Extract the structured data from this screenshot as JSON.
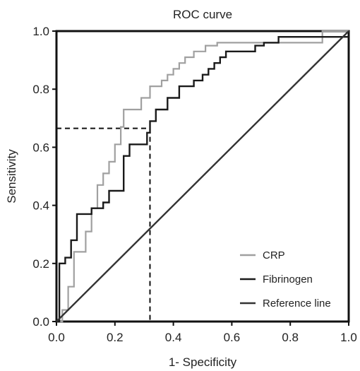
{
  "chart_data": {
    "type": "line",
    "title": "ROC curve",
    "xlabel": "1- Specificity",
    "ylabel": "Sensitivity",
    "xlim": [
      0,
      1
    ],
    "ylim": [
      0,
      1
    ],
    "x_ticks": [
      "0.0",
      "0.2",
      "0.4",
      "0.6",
      "0.8",
      "1.0"
    ],
    "y_ticks": [
      "0.0",
      "0.2",
      "0.4",
      "0.6",
      "0.8",
      "1.0"
    ],
    "grid": false,
    "legend_position": "bottom-right",
    "series": [
      {
        "name": "CRP",
        "color": "#a0a0a0",
        "style": "step",
        "points": [
          [
            0,
            0
          ],
          [
            0.02,
            0
          ],
          [
            0.02,
            0.04
          ],
          [
            0.04,
            0.04
          ],
          [
            0.04,
            0.12
          ],
          [
            0.06,
            0.12
          ],
          [
            0.06,
            0.24
          ],
          [
            0.1,
            0.24
          ],
          [
            0.1,
            0.31
          ],
          [
            0.12,
            0.31
          ],
          [
            0.12,
            0.39
          ],
          [
            0.14,
            0.39
          ],
          [
            0.14,
            0.47
          ],
          [
            0.16,
            0.47
          ],
          [
            0.16,
            0.51
          ],
          [
            0.18,
            0.51
          ],
          [
            0.18,
            0.55
          ],
          [
            0.2,
            0.55
          ],
          [
            0.2,
            0.61
          ],
          [
            0.22,
            0.61
          ],
          [
            0.22,
            0.67
          ],
          [
            0.23,
            0.67
          ],
          [
            0.23,
            0.73
          ],
          [
            0.29,
            0.73
          ],
          [
            0.29,
            0.77
          ],
          [
            0.32,
            0.77
          ],
          [
            0.32,
            0.81
          ],
          [
            0.36,
            0.81
          ],
          [
            0.36,
            0.83
          ],
          [
            0.38,
            0.83
          ],
          [
            0.38,
            0.85
          ],
          [
            0.4,
            0.85
          ],
          [
            0.4,
            0.87
          ],
          [
            0.42,
            0.87
          ],
          [
            0.42,
            0.89
          ],
          [
            0.44,
            0.89
          ],
          [
            0.44,
            0.91
          ],
          [
            0.47,
            0.91
          ],
          [
            0.47,
            0.93
          ],
          [
            0.51,
            0.93
          ],
          [
            0.51,
            0.95
          ],
          [
            0.55,
            0.95
          ],
          [
            0.55,
            0.96
          ],
          [
            0.91,
            0.96
          ],
          [
            0.91,
            1.0
          ],
          [
            1.0,
            1.0
          ]
        ]
      },
      {
        "name": "Fibrinogen",
        "color": "#1a1a1a",
        "style": "step",
        "points": [
          [
            0,
            0
          ],
          [
            0.01,
            0
          ],
          [
            0.01,
            0.2
          ],
          [
            0.03,
            0.2
          ],
          [
            0.03,
            0.22
          ],
          [
            0.05,
            0.22
          ],
          [
            0.05,
            0.28
          ],
          [
            0.07,
            0.28
          ],
          [
            0.07,
            0.37
          ],
          [
            0.12,
            0.37
          ],
          [
            0.12,
            0.39
          ],
          [
            0.16,
            0.39
          ],
          [
            0.16,
            0.41
          ],
          [
            0.18,
            0.41
          ],
          [
            0.18,
            0.45
          ],
          [
            0.23,
            0.45
          ],
          [
            0.23,
            0.57
          ],
          [
            0.25,
            0.57
          ],
          [
            0.25,
            0.61
          ],
          [
            0.31,
            0.61
          ],
          [
            0.31,
            0.65
          ],
          [
            0.32,
            0.65
          ],
          [
            0.32,
            0.69
          ],
          [
            0.34,
            0.69
          ],
          [
            0.34,
            0.73
          ],
          [
            0.38,
            0.73
          ],
          [
            0.38,
            0.77
          ],
          [
            0.42,
            0.77
          ],
          [
            0.42,
            0.81
          ],
          [
            0.47,
            0.81
          ],
          [
            0.47,
            0.83
          ],
          [
            0.5,
            0.83
          ],
          [
            0.5,
            0.85
          ],
          [
            0.52,
            0.85
          ],
          [
            0.52,
            0.87
          ],
          [
            0.54,
            0.87
          ],
          [
            0.54,
            0.89
          ],
          [
            0.56,
            0.89
          ],
          [
            0.56,
            0.91
          ],
          [
            0.58,
            0.91
          ],
          [
            0.58,
            0.93
          ],
          [
            0.68,
            0.93
          ],
          [
            0.68,
            0.95
          ],
          [
            0.71,
            0.95
          ],
          [
            0.71,
            0.96
          ],
          [
            0.76,
            0.96
          ],
          [
            0.76,
            0.98
          ],
          [
            1.0,
            0.98
          ]
        ]
      },
      {
        "name": "Reference line",
        "color": "#333333",
        "style": "line",
        "points": [
          [
            0,
            0
          ],
          [
            1,
            1
          ]
        ]
      }
    ],
    "annotations": {
      "cutoff_point": {
        "x": 0.32,
        "y": 0.665,
        "style": "dashed"
      }
    }
  }
}
